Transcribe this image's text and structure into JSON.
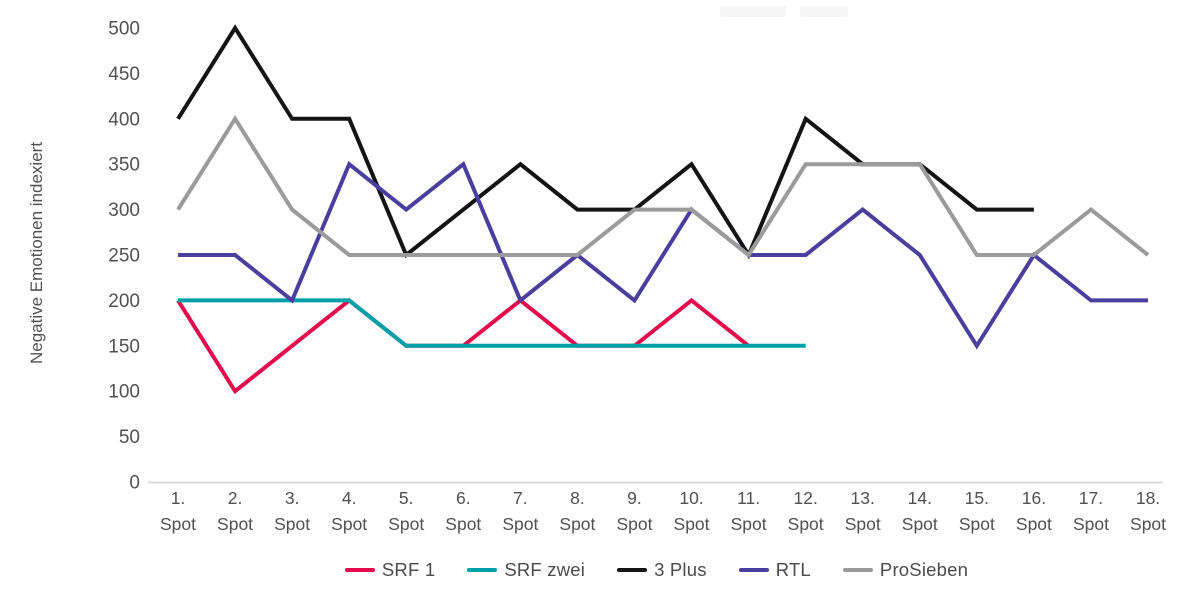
{
  "colors": {
    "background": "#ffffff",
    "axis_line": "#dbdbdb",
    "tick_text": "#515153",
    "axis_title_text": "#3d3d3f",
    "legend_text": "#4b4b4d"
  },
  "chart_data": {
    "type": "line",
    "title": "",
    "xlabel": "",
    "ylabel": "Negative Emotionen indexiert",
    "categories": [
      "1. Spot",
      "2. Spot",
      "3. Spot",
      "4. Spot",
      "5. Spot",
      "6. Spot",
      "7. Spot",
      "8. Spot",
      "9. Spot",
      "10. Spot",
      "11. Spot",
      "12. Spot",
      "13. Spot",
      "14. Spot",
      "15. Spot",
      "16. Spot",
      "17. Spot",
      "18. Spot"
    ],
    "yticks": [
      0,
      50,
      100,
      150,
      200,
      250,
      300,
      350,
      400,
      450,
      500
    ],
    "ylim": [
      0,
      500
    ],
    "grid": false,
    "legend_position": "bottom",
    "series": [
      {
        "name": "SRF 1",
        "color": "#e40a4c",
        "values": [
          200,
          100,
          150,
          200,
          150,
          150,
          200,
          150,
          150,
          200,
          150
        ]
      },
      {
        "name": "SRF zwei",
        "color": "#00a0a8",
        "values": [
          200,
          200,
          200,
          200,
          150,
          150,
          150,
          150,
          150,
          150,
          150,
          150
        ]
      },
      {
        "name": "3 Plus",
        "color": "#141414",
        "values": [
          400,
          500,
          400,
          400,
          250,
          300,
          350,
          300,
          300,
          350,
          250,
          400,
          350,
          350,
          300,
          300
        ]
      },
      {
        "name": "RTL",
        "color": "#4a3f9f",
        "values": [
          250,
          250,
          200,
          350,
          300,
          350,
          200,
          250,
          200,
          300,
          250,
          250,
          300,
          250,
          150,
          250,
          200,
          200
        ]
      },
      {
        "name": "ProSieben",
        "color": "#9b9b9b",
        "values": [
          300,
          400,
          300,
          250,
          250,
          250,
          250,
          250,
          300,
          300,
          250,
          350,
          350,
          350,
          250,
          250,
          300,
          250
        ]
      }
    ]
  }
}
